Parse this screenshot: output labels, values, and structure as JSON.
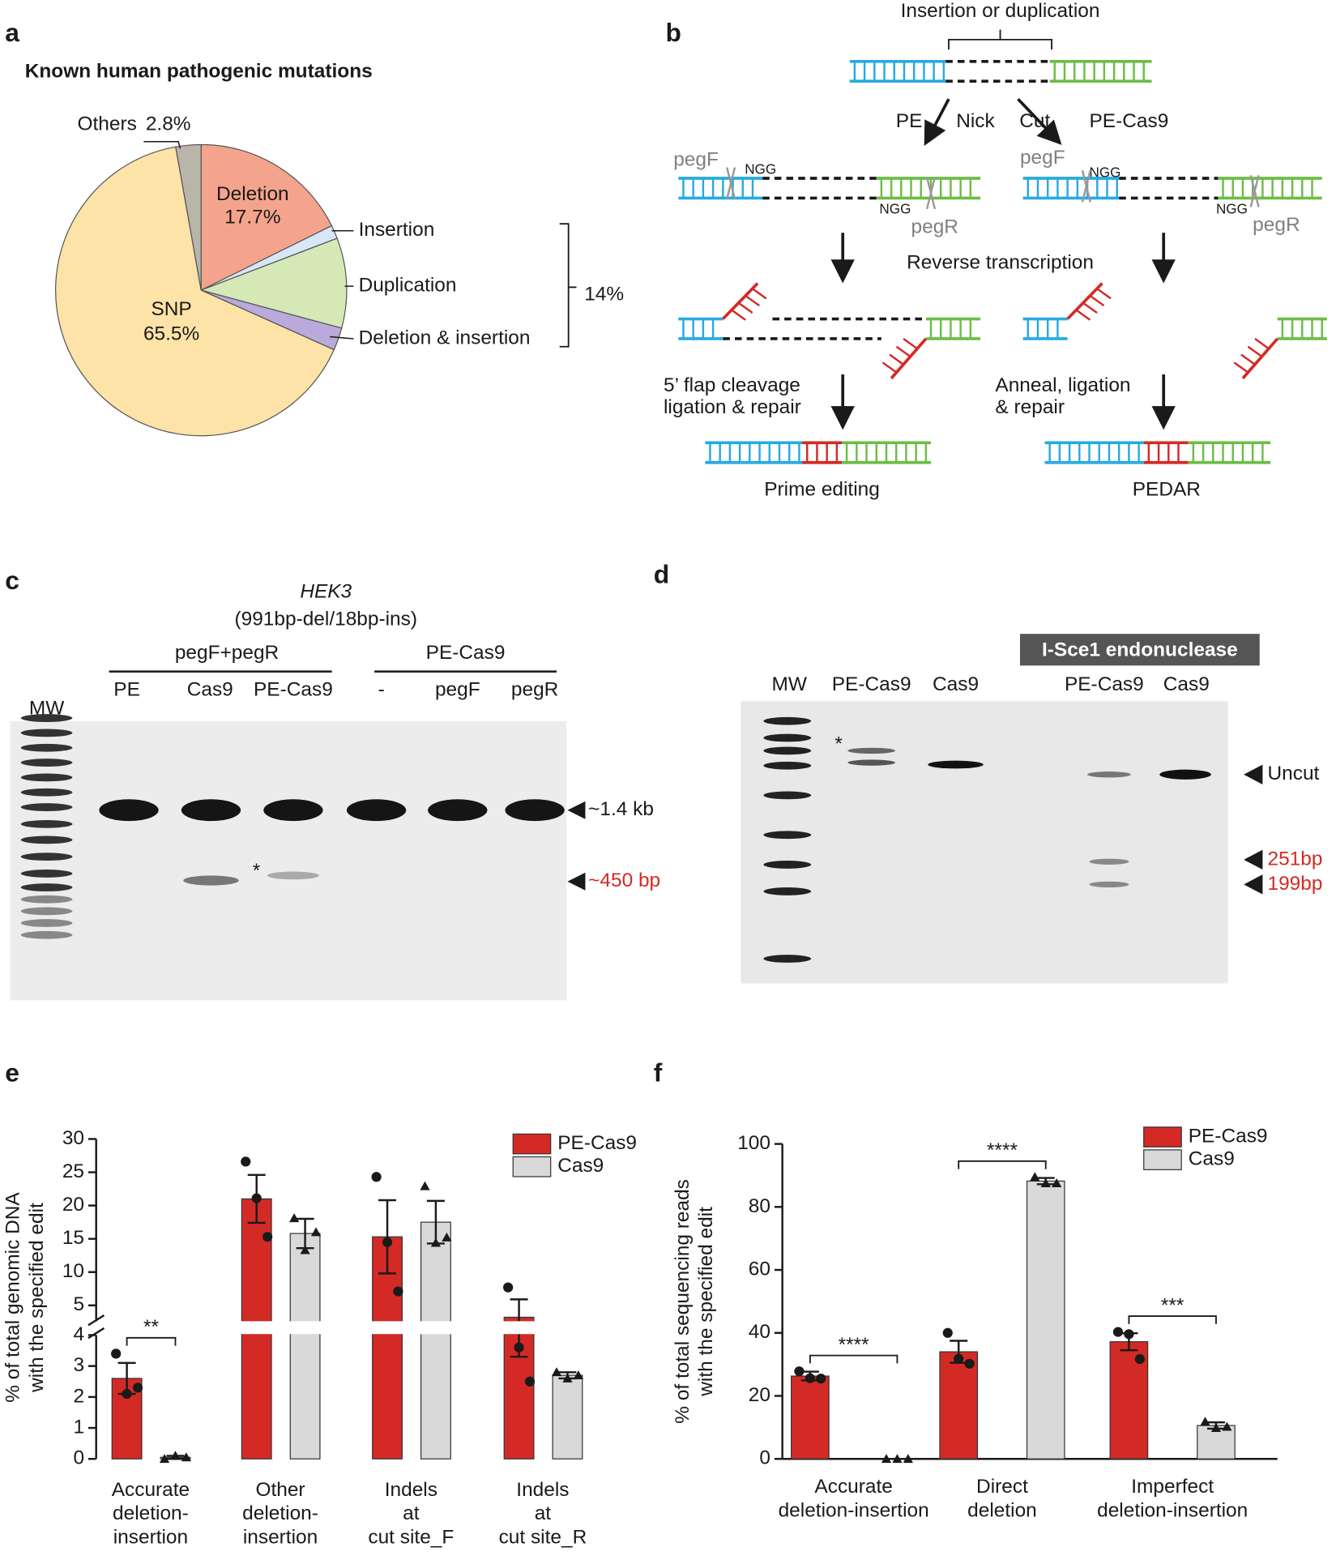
{
  "panel_labels": [
    "a",
    "b",
    "c",
    "d",
    "e",
    "f"
  ],
  "chart_data": [
    {
      "type": "pie",
      "title": "Known human pathogenic mutations",
      "categories": [
        "Deletion",
        "Insertion",
        "Duplication",
        "Deletion & insertion",
        "SNP",
        "Others"
      ],
      "values": [
        17.7,
        1.5,
        10,
        2.5,
        65.5,
        2.8
      ],
      "value_labels": [
        "17.7%",
        null,
        null,
        null,
        "65.5%",
        "2.8%"
      ],
      "colors": [
        "#f4a48c",
        "#d8e7f6",
        "#d5e9b6",
        "#b9aadb",
        "#fde3a7",
        "#bab5aa"
      ],
      "annotation": "14%"
    },
    {
      "type": "bar",
      "categories": [
        [
          "Accurate",
          "deletion-",
          "insertion"
        ],
        [
          "Other",
          "deletion-",
          "insertion"
        ],
        [
          "Indels",
          "at",
          "cut site_F"
        ],
        [
          "Indels",
          "at",
          "cut site_R"
        ]
      ],
      "ylabel": [
        "% of total genomic DNA",
        "with the specified edit"
      ],
      "ylim": [
        0,
        30
      ],
      "yticks": [
        0,
        1,
        2,
        3,
        4,
        5,
        10,
        15,
        20,
        25,
        30
      ],
      "ybreak": [
        4,
        5
      ],
      "legend": "upper right",
      "series": [
        {
          "name": "PE-Cas9",
          "color": "#d42a26",
          "marker": "circle",
          "values": [
            2.6,
            21,
            15.3,
            4.6
          ],
          "errors": [
            0.5,
            3.6,
            5.5,
            1.3
          ],
          "points": [
            [
              3.4,
              2.1,
              2.3
            ],
            [
              26.6,
              21.1,
              15.3
            ],
            [
              24.3,
              14.5,
              7.1
            ],
            [
              7.7,
              3.6,
              2.5
            ]
          ]
        },
        {
          "name": "Cas9",
          "color": "#d9d9d9",
          "marker": "triangle",
          "values": [
            0.05,
            15.8,
            17.5,
            2.7
          ],
          "errors": [
            0.05,
            2.2,
            3.2,
            0.1
          ],
          "points": [
            [
              0,
              0.1,
              0.05
            ],
            [
              18.1,
              13.3,
              16
            ],
            [
              22.9,
              14.4,
              15.2
            ],
            [
              2.8,
              2.6,
              2.7
            ]
          ]
        }
      ],
      "significance": [
        "**",
        null,
        null,
        null
      ]
    },
    {
      "type": "bar",
      "categories": [
        [
          "Accurate",
          "deletion-insertion"
        ],
        [
          "Direct",
          "deletion"
        ],
        [
          "Imperfect",
          "deletion-insertion"
        ]
      ],
      "ylabel": [
        "% of total sequencing reads",
        "with the specified edit"
      ],
      "ylim": [
        0,
        100
      ],
      "yticks": [
        0,
        20,
        40,
        60,
        80,
        100
      ],
      "legend": "upper right",
      "series": [
        {
          "name": "PE-Cas9",
          "color": "#d42a26",
          "marker": "circle",
          "values": [
            26.3,
            34,
            37.2
          ],
          "errors": [
            1.4,
            3.5,
            2.7
          ],
          "points": [
            [
              27.8,
              25.6,
              25.5
            ],
            [
              40,
              31.8,
              30.2
            ],
            [
              40.3,
              39.6,
              31.7
            ]
          ]
        },
        {
          "name": "Cas9",
          "color": "#d9d9d9",
          "marker": "triangle",
          "values": [
            0,
            88.2,
            10.6
          ],
          "errors": [
            0,
            1,
            1
          ],
          "points": [
            [
              0,
              0,
              0
            ],
            [
              89.5,
              87.5,
              87.5
            ],
            [
              11.8,
              9.8,
              10.2
            ]
          ]
        }
      ],
      "significance": [
        "****",
        "****",
        "***"
      ]
    }
  ],
  "diagram": {
    "title": "Insertion or duplication",
    "left_branch": "PE",
    "nick": "Nick",
    "cut": "Cut",
    "right_branch": "PE-Cas9",
    "guides": [
      "pegF",
      "NGG",
      "NGG",
      "pegR",
      "pegF",
      "NGG",
      "NGG",
      "pegR"
    ],
    "step1": "Reverse transcription",
    "left_step2": [
      "5’ flap cleavage",
      "ligation & repair"
    ],
    "right_step2": [
      "Anneal, ligation",
      "& repair"
    ],
    "left_result": "Prime editing",
    "right_result": "PEDAR"
  },
  "gel_c": {
    "gene": "HEK3",
    "subtitle": "(991bp-del/18bp-ins)",
    "groups": [
      "pegF+pegR",
      "PE-Cas9"
    ],
    "lanes": [
      "MW",
      "PE",
      "Cas9",
      "PE-Cas9",
      "-",
      "pegF",
      "pegR"
    ],
    "star": "*",
    "markers": [
      "~1.4 kb",
      "~450 bp"
    ]
  },
  "gel_d": {
    "treatment": "I-Sce1 endonuclease",
    "lanes": [
      "MW",
      "PE-Cas9",
      "Cas9",
      "PE-Cas9",
      "Cas9"
    ],
    "star": "*",
    "markers": [
      "Uncut",
      "251bp",
      "199bp"
    ]
  }
}
